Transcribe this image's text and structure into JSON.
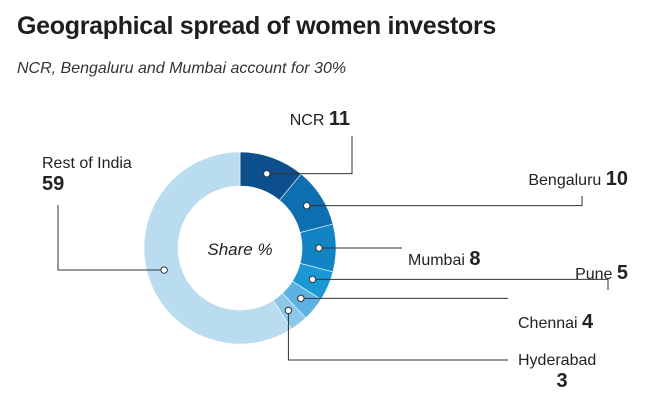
{
  "chart_data": {
    "type": "pie",
    "title": "Geographical spread of women investors",
    "subtitle": "NCR, Bengaluru and Mumbai account for 30%",
    "center_label": "Share %",
    "slices": [
      {
        "label": "NCR",
        "value": 11,
        "color": "#0c4f8c"
      },
      {
        "label": "Bengaluru",
        "value": 10,
        "color": "#0d6fb1"
      },
      {
        "label": "Mumbai",
        "value": 8,
        "color": "#1284c5"
      },
      {
        "label": "Pune",
        "value": 5,
        "color": "#1a98d3"
      },
      {
        "label": "Chennai",
        "value": 4,
        "color": "#5bb1df"
      },
      {
        "label": "Hyderabad",
        "value": 3,
        "color": "#8cc6e8"
      },
      {
        "label": "Rest of India",
        "value": 59,
        "color": "#b9dcf1"
      }
    ]
  }
}
